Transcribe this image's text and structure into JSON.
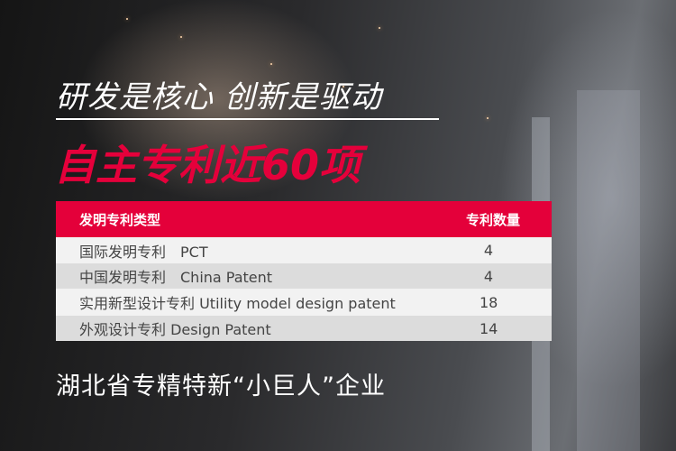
{
  "headline": "研发是核心 创新是驱动",
  "highlight": "自主专利近60项",
  "table": {
    "headers": [
      "发明专利类型",
      "专利数量"
    ],
    "rows": [
      {
        "type": "国际发明专利　PCT",
        "count": "4"
      },
      {
        "type": "中国发明专利　China Patent",
        "count": "4"
      },
      {
        "type": "实用新型设计专利  Utility model design patent",
        "count": "18"
      },
      {
        "type": "外观设计专利  Design Patent",
        "count": "14"
      }
    ]
  },
  "footer": "湖北省专精特新“小巨人”企业",
  "colors": {
    "accent": "#e4003a",
    "row_light": "#f2f2f2",
    "row_dark": "#dcdcdc"
  }
}
